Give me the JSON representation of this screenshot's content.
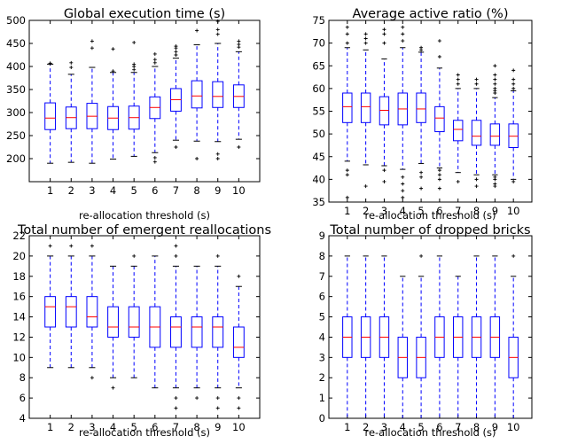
{
  "colors": {
    "box": "#0000ff",
    "median": "#ff0000",
    "flier": "#000000",
    "frame": "#000000"
  },
  "chart_data": [
    {
      "type": "boxplot",
      "title": "Global execution time (s)",
      "xlabel": "re-allocation threshold (s)",
      "ylabel": "",
      "categories": [
        "1",
        "2",
        "3",
        "4",
        "5",
        "6",
        "7",
        "8",
        "9",
        "10"
      ],
      "ylim": [
        150,
        500
      ],
      "yticks": [
        "200",
        "250",
        "300",
        "350",
        "400",
        "450",
        "500"
      ],
      "boxes": [
        {
          "whislo": 190,
          "q1": 263,
          "med": 288,
          "q3": 321,
          "whishi": 405,
          "fliers": [
            406,
            407
          ]
        },
        {
          "whislo": 192,
          "q1": 265,
          "med": 289,
          "q3": 312,
          "whishi": 383,
          "fliers": [
            398,
            408
          ]
        },
        {
          "whislo": 190,
          "q1": 265,
          "med": 292,
          "q3": 320,
          "whishi": 398,
          "fliers": [
            440,
            455
          ]
        },
        {
          "whislo": 199,
          "q1": 263,
          "med": 288,
          "q3": 313,
          "whishi": 387,
          "fliers": [
            390,
            438
          ]
        },
        {
          "whislo": 205,
          "q1": 264,
          "med": 289,
          "q3": 314,
          "whishi": 387,
          "fliers": [
            393,
            400,
            405,
            452
          ]
        },
        {
          "whislo": 213,
          "q1": 287,
          "med": 311,
          "q3": 334,
          "whishi": 400,
          "fliers": [
            193,
            202,
            408,
            415,
            427
          ]
        },
        {
          "whislo": 240,
          "q1": 303,
          "med": 328,
          "q3": 352,
          "whishi": 418,
          "fliers": [
            225,
            425,
            432,
            440,
            444
          ]
        },
        {
          "whislo": 238,
          "q1": 310,
          "med": 336,
          "q3": 369,
          "whishi": 447,
          "fliers": [
            200,
            478
          ]
        },
        {
          "whislo": 237,
          "q1": 311,
          "med": 335,
          "q3": 367,
          "whishi": 450,
          "fliers": [
            200,
            210,
            470,
            480,
            498
          ]
        },
        {
          "whislo": 242,
          "q1": 311,
          "med": 335,
          "q3": 360,
          "whishi": 432,
          "fliers": [
            225,
            442,
            448,
            455
          ]
        }
      ]
    },
    {
      "type": "boxplot",
      "title": "Average active ratio (%)",
      "xlabel": "re-allocation threshold (s)",
      "ylabel": "",
      "categories": [
        "1",
        "2",
        "3",
        "4",
        "5",
        "6",
        "7",
        "8",
        "9",
        "10"
      ],
      "ylim": [
        35,
        75
      ],
      "yticks": [
        "35",
        "40",
        "45",
        "50",
        "55",
        "60",
        "65",
        "70",
        "75"
      ],
      "boxes": [
        {
          "whislo": 44,
          "q1": 52.5,
          "med": 56,
          "q3": 59,
          "whishi": 69,
          "fliers": [
            36,
            41,
            42,
            70,
            72,
            73.5
          ]
        },
        {
          "whislo": 43.2,
          "q1": 52.5,
          "med": 56,
          "q3": 59,
          "whishi": 68.5,
          "fliers": [
            38.5,
            70,
            71,
            72
          ]
        },
        {
          "whislo": 43,
          "q1": 52,
          "med": 55.2,
          "q3": 58.2,
          "whishi": 66.5,
          "fliers": [
            39.5,
            42,
            70,
            72,
            73
          ]
        },
        {
          "whislo": 42.2,
          "q1": 52,
          "med": 55.5,
          "q3": 59,
          "whishi": 69,
          "fliers": [
            36,
            37.5,
            39,
            40.5,
            70.5,
            72,
            73.5
          ]
        },
        {
          "whislo": 43.5,
          "q1": 52.5,
          "med": 55.5,
          "q3": 59,
          "whishi": 68,
          "fliers": [
            38,
            40.5,
            41.5,
            68.5,
            69
          ]
        },
        {
          "whislo": 42.5,
          "q1": 50.5,
          "med": 53.5,
          "q3": 56,
          "whishi": 64.5,
          "fliers": [
            38,
            40,
            41,
            42,
            67,
            70.5
          ]
        },
        {
          "whislo": 41.5,
          "q1": 48.5,
          "med": 51,
          "q3": 53,
          "whishi": 60,
          "fliers": [
            39.5,
            61,
            62,
            63
          ]
        },
        {
          "whislo": 41,
          "q1": 47.5,
          "med": 49.5,
          "q3": 53,
          "whishi": 60,
          "fliers": [
            38.5,
            40,
            61,
            62
          ]
        },
        {
          "whislo": 41,
          "q1": 47.5,
          "med": 49.5,
          "q3": 52.2,
          "whishi": 58,
          "fliers": [
            38.5,
            39,
            40,
            40.5,
            59,
            59.5,
            60,
            61,
            62,
            63,
            65
          ]
        },
        {
          "whislo": 40,
          "q1": 47,
          "med": 49.5,
          "q3": 52.2,
          "whishi": 59.5,
          "fliers": [
            39.5,
            60,
            61,
            62,
            64
          ]
        }
      ]
    },
    {
      "type": "boxplot",
      "title": "Total number of emergent reallocations",
      "xlabel": "re-allocation threshold (s)",
      "ylabel": "",
      "categories": [
        "1",
        "2",
        "3",
        "4",
        "5",
        "6",
        "7",
        "8",
        "9",
        "10"
      ],
      "ylim": [
        4,
        22
      ],
      "yticks": [
        "4",
        "6",
        "8",
        "10",
        "12",
        "14",
        "16",
        "18",
        "20",
        "22"
      ],
      "boxes": [
        {
          "whislo": 9,
          "q1": 13,
          "med": 15,
          "q3": 16,
          "whishi": 20,
          "fliers": [
            21
          ]
        },
        {
          "whislo": 9,
          "q1": 13,
          "med": 15,
          "q3": 16,
          "whishi": 20,
          "fliers": [
            21
          ]
        },
        {
          "whislo": 9,
          "q1": 13,
          "med": 14,
          "q3": 16,
          "whishi": 20,
          "fliers": [
            8,
            21
          ]
        },
        {
          "whislo": 8,
          "q1": 12,
          "med": 13,
          "q3": 15,
          "whishi": 19,
          "fliers": [
            7
          ]
        },
        {
          "whislo": 8,
          "q1": 12,
          "med": 13,
          "q3": 15,
          "whishi": 19,
          "fliers": [
            20
          ]
        },
        {
          "whislo": 7,
          "q1": 11,
          "med": 13,
          "q3": 15,
          "whishi": 20,
          "fliers": []
        },
        {
          "whislo": 7,
          "q1": 11,
          "med": 13,
          "q3": 14,
          "whishi": 19,
          "fliers": [
            5,
            6,
            20,
            21
          ]
        },
        {
          "whislo": 7,
          "q1": 11,
          "med": 13,
          "q3": 14,
          "whishi": 19,
          "fliers": [
            6
          ]
        },
        {
          "whislo": 7,
          "q1": 11,
          "med": 13,
          "q3": 14,
          "whishi": 19,
          "fliers": [
            5,
            6,
            20
          ]
        },
        {
          "whislo": 7,
          "q1": 10,
          "med": 11,
          "q3": 13,
          "whishi": 17,
          "fliers": [
            5,
            6,
            18
          ]
        }
      ]
    },
    {
      "type": "boxplot",
      "title": "Total number of dropped bricks",
      "xlabel": "re-allocation threshold (s)",
      "ylabel": "",
      "categories": [
        "1",
        "2",
        "3",
        "4",
        "5",
        "6",
        "7",
        "8",
        "9",
        "10"
      ],
      "ylim": [
        0,
        9
      ],
      "yticks": [
        "0",
        "1",
        "2",
        "3",
        "4",
        "5",
        "6",
        "7",
        "8",
        "9"
      ],
      "boxes": [
        {
          "whislo": 0,
          "q1": 3,
          "med": 4,
          "q3": 5,
          "whishi": 8,
          "fliers": []
        },
        {
          "whislo": 0,
          "q1": 3,
          "med": 4,
          "q3": 5,
          "whishi": 8,
          "fliers": []
        },
        {
          "whislo": 0,
          "q1": 3,
          "med": 4,
          "q3": 5,
          "whishi": 8,
          "fliers": []
        },
        {
          "whislo": 0,
          "q1": 2,
          "med": 3,
          "q3": 4,
          "whishi": 7,
          "fliers": []
        },
        {
          "whislo": 0,
          "q1": 2,
          "med": 3,
          "q3": 4,
          "whishi": 7,
          "fliers": [
            8
          ]
        },
        {
          "whislo": 0,
          "q1": 3,
          "med": 4,
          "q3": 5,
          "whishi": 8,
          "fliers": []
        },
        {
          "whislo": 0,
          "q1": 3,
          "med": 4,
          "q3": 5,
          "whishi": 7,
          "fliers": []
        },
        {
          "whislo": 0,
          "q1": 3,
          "med": 4,
          "q3": 5,
          "whishi": 8,
          "fliers": []
        },
        {
          "whislo": 0,
          "q1": 3,
          "med": 4,
          "q3": 5,
          "whishi": 8,
          "fliers": []
        },
        {
          "whislo": 0,
          "q1": 2,
          "med": 3,
          "q3": 4,
          "whishi": 7,
          "fliers": [
            8
          ]
        }
      ]
    }
  ]
}
